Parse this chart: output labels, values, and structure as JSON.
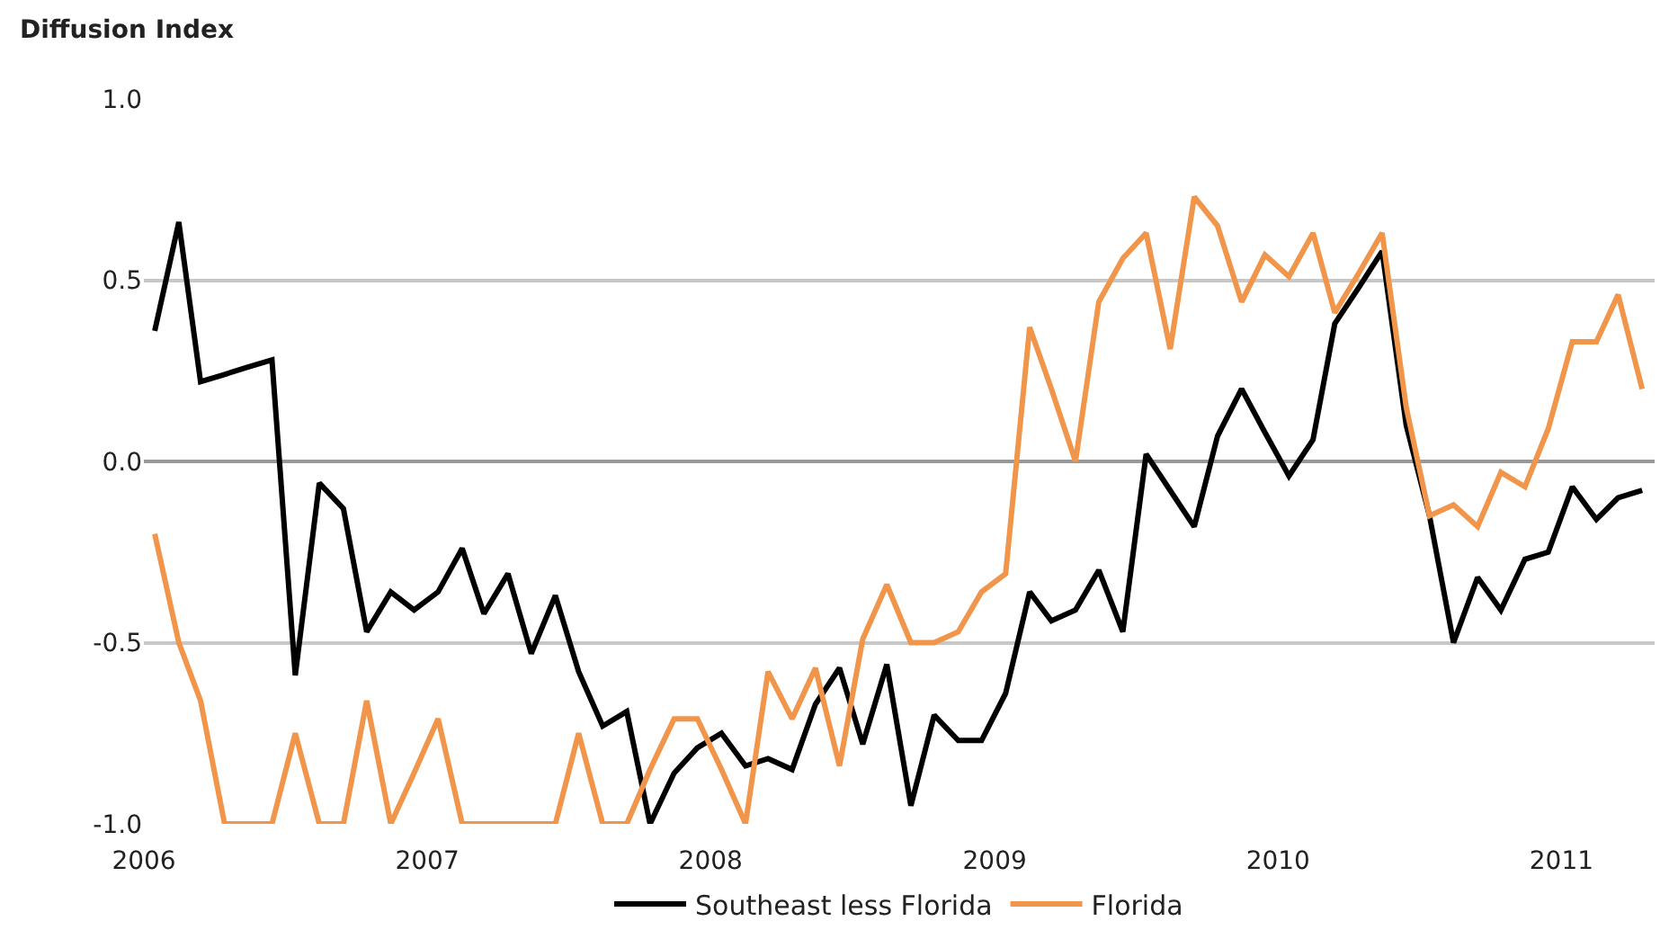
{
  "chart_data": {
    "type": "line",
    "ylabel": "Diffusion Index",
    "x": [
      "2006-01-15",
      "2006-02-15",
      "2006-03-15",
      "2006-04-15",
      "2006-05-15",
      "2006-06-15",
      "2006-07-15",
      "2006-08-15",
      "2006-09-15",
      "2006-10-15",
      "2006-11-15",
      "2006-12-15",
      "2007-01-15",
      "2007-02-15",
      "2007-03-15",
      "2007-04-15",
      "2007-05-15",
      "2007-06-15",
      "2007-07-15",
      "2007-08-15",
      "2007-09-15",
      "2007-10-15",
      "2007-11-15",
      "2007-12-15",
      "2008-01-15",
      "2008-02-15",
      "2008-03-15",
      "2008-04-15",
      "2008-05-15",
      "2008-06-15",
      "2008-07-15",
      "2008-08-15",
      "2008-09-15",
      "2008-10-15",
      "2008-11-15",
      "2008-12-15",
      "2009-01-15",
      "2009-02-15",
      "2009-03-15",
      "2009-04-15",
      "2009-05-15",
      "2009-06-15",
      "2009-07-15",
      "2009-08-15",
      "2009-09-15",
      "2009-10-15",
      "2009-11-15",
      "2009-12-15",
      "2010-01-15",
      "2010-02-15",
      "2010-03-15",
      "2010-04-15",
      "2010-05-15",
      "2010-06-15",
      "2010-07-15",
      "2010-08-15",
      "2010-09-15",
      "2010-10-15",
      "2010-11-15",
      "2010-12-15",
      "2011-01-15",
      "2011-02-15",
      "2011-03-15",
      "2011-04-15"
    ],
    "series": [
      {
        "name": "Southeast less Florida",
        "color": "#000000",
        "values": [
          0.36,
          0.66,
          0.22,
          0.24,
          0.26,
          0.28,
          -0.59,
          -0.06,
          -0.13,
          -0.47,
          -0.36,
          -0.41,
          -0.36,
          -0.24,
          -0.42,
          -0.31,
          -0.53,
          -0.37,
          -0.58,
          -0.73,
          -0.69,
          -1.0,
          -0.86,
          -0.79,
          -0.75,
          -0.84,
          -0.82,
          -0.85,
          -0.67,
          -0.57,
          -0.78,
          -0.56,
          -0.95,
          -0.7,
          -0.77,
          -0.77,
          -0.64,
          -0.36,
          -0.44,
          -0.41,
          -0.3,
          -0.47,
          0.02,
          -0.08,
          -0.18,
          0.07,
          0.2,
          0.08,
          -0.04,
          0.06,
          0.38,
          0.48,
          0.58,
          0.1,
          -0.15,
          -0.5,
          -0.32,
          -0.41,
          -0.27,
          -0.25,
          -0.07,
          -0.16,
          -0.1,
          -0.08
        ]
      },
      {
        "name": "Florida",
        "color": "#f0954a",
        "values": [
          -0.2,
          -0.5,
          -0.66,
          -1.0,
          -1.0,
          -1.0,
          -0.75,
          -1.0,
          -1.0,
          -0.66,
          -1.0,
          -0.86,
          -0.71,
          -1.0,
          -1.0,
          -1.0,
          -1.0,
          -1.0,
          -0.75,
          -1.0,
          -1.0,
          -0.85,
          -0.71,
          -0.71,
          -0.85,
          -1.0,
          -0.58,
          -0.71,
          -0.57,
          -0.84,
          -0.49,
          -0.34,
          -0.5,
          -0.5,
          -0.47,
          -0.36,
          -0.31,
          0.37,
          0.2,
          0.0,
          0.44,
          0.56,
          0.63,
          0.31,
          0.73,
          0.65,
          0.44,
          0.57,
          0.51,
          0.63,
          0.41,
          0.52,
          0.63,
          0.15,
          -0.15,
          -0.12,
          -0.18,
          -0.03,
          -0.07,
          0.09,
          0.33,
          0.33,
          0.46,
          0.2
        ]
      }
    ],
    "xlim": [
      "2006-01-01",
      "2011-05-01"
    ],
    "xticks": [
      "2006",
      "2007",
      "2008",
      "2009",
      "2010",
      "2011"
    ],
    "ylim": [
      -1.0,
      1.0
    ],
    "yticks": [
      {
        "value": -1.0,
        "label": "-1.0"
      },
      {
        "value": -0.5,
        "label": "-0.5"
      },
      {
        "value": 0,
        "label": "0.0"
      },
      {
        "value": 0.5,
        "label": "0.5"
      },
      {
        "value": 1.0,
        "label": "1.0"
      }
    ],
    "grid": "y",
    "legend": "bottom",
    "marker": "none",
    "line_style": "solid"
  }
}
